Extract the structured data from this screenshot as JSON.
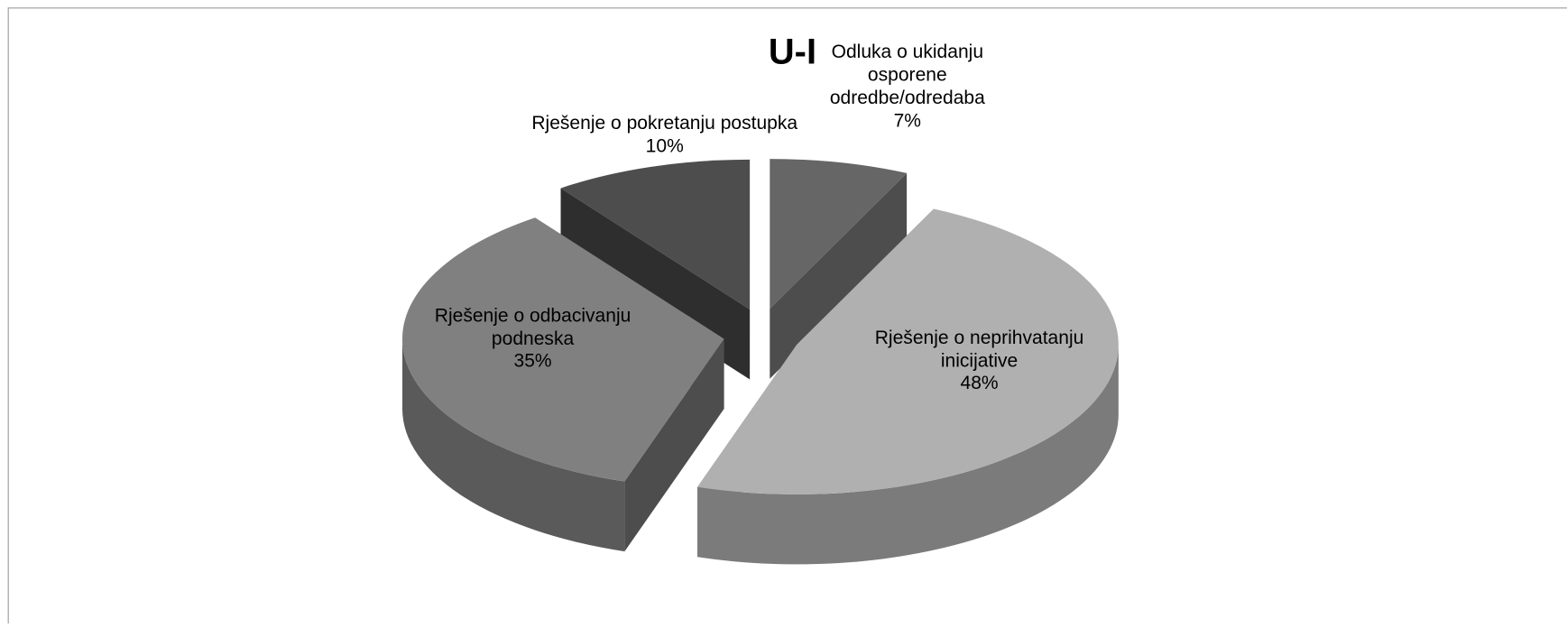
{
  "chart_data": {
    "type": "pie",
    "title": "U-I",
    "categories": [
      "Odluka o ukidanju osporene odredbe/odredaba",
      "Rješenje o neprihvatanju inicijative",
      "Rješenje o odbacivanju podneska",
      "Rješenje o pokretanju postupka"
    ],
    "values": [
      7,
      48,
      35,
      10
    ],
    "value_labels": [
      "7%",
      "48%",
      "35%",
      "10%"
    ],
    "colors": [
      "#666666",
      "#b0b0b0",
      "#808080",
      "#4d4d4d"
    ]
  }
}
